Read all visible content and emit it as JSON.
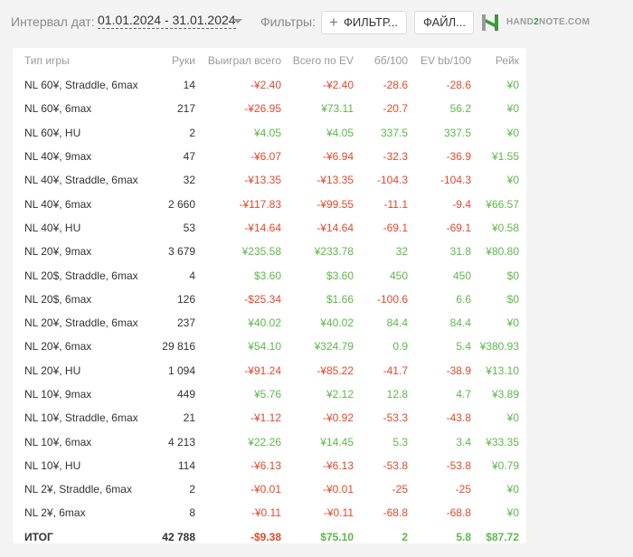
{
  "toolbar": {
    "date_label": "Интервал дат:",
    "date_range": "01.01.2024 - 31.01.2024",
    "filters_label": "Фильтры:",
    "filter_button": "ФИЛЬТР...",
    "file_button": "ФАЙЛ...",
    "logo_text_a": "HAND",
    "logo_text_b": "2",
    "logo_text_c": "NOTE.COM",
    "colors": {
      "logo_green": "#3c9a3c",
      "negative": "#e0492c",
      "positive": "#5cb84a"
    }
  },
  "table": {
    "columns": [
      "Тип игры",
      "Руки",
      "Выиграл всего",
      "Всего по EV",
      "бб/100",
      "EV bb/100",
      "Рейк"
    ],
    "rows": [
      [
        "NL 60¥, Straddle, 6max",
        "14",
        "-¥2.40",
        "-¥2.40",
        "-28.6",
        "-28.6",
        "¥0"
      ],
      [
        "NL 60¥, 6max",
        "217",
        "-¥26.95",
        "¥73.11",
        "-20.7",
        "56.2",
        "¥0"
      ],
      [
        "NL 60¥, HU",
        "2",
        "¥4.05",
        "¥4.05",
        "337.5",
        "337.5",
        "¥0"
      ],
      [
        "NL 40¥, 9max",
        "47",
        "-¥6.07",
        "-¥6.94",
        "-32.3",
        "-36.9",
        "¥1.55"
      ],
      [
        "NL 40¥, Straddle, 6max",
        "32",
        "-¥13.35",
        "-¥13.35",
        "-104.3",
        "-104.3",
        "¥0"
      ],
      [
        "NL 40¥, 6max",
        "2 660",
        "-¥117.83",
        "-¥99.55",
        "-11.1",
        "-9.4",
        "¥66.57"
      ],
      [
        "NL 40¥, HU",
        "53",
        "-¥14.64",
        "-¥14.64",
        "-69.1",
        "-69.1",
        "¥0.58"
      ],
      [
        "NL 20¥, 9max",
        "3 679",
        "¥235.58",
        "¥233.78",
        "32",
        "31.8",
        "¥80.80"
      ],
      [
        "NL 20$, Straddle, 6max",
        "4",
        "$3.60",
        "$3.60",
        "450",
        "450",
        "$0"
      ],
      [
        "NL 20$, 6max",
        "126",
        "-$25.34",
        "$1.66",
        "-100.6",
        "6.6",
        "$0"
      ],
      [
        "NL 20¥, Straddle, 6max",
        "237",
        "¥40.02",
        "¥40.02",
        "84.4",
        "84.4",
        "¥0"
      ],
      [
        "NL 20¥, 6max",
        "29 816",
        "¥54.10",
        "¥324.79",
        "0.9",
        "5.4",
        "¥380.93"
      ],
      [
        "NL 20¥, HU",
        "1 094",
        "-¥91.24",
        "-¥85.22",
        "-41.7",
        "-38.9",
        "¥13.10"
      ],
      [
        "NL 10¥, 9max",
        "449",
        "¥5.76",
        "¥2.12",
        "12.8",
        "4.7",
        "¥3.89"
      ],
      [
        "NL 10¥, Straddle, 6max",
        "21",
        "-¥1.12",
        "-¥0.92",
        "-53.3",
        "-43.8",
        "¥0"
      ],
      [
        "NL 10¥, 6max",
        "4 213",
        "¥22.26",
        "¥14.45",
        "5.3",
        "3.4",
        "¥33.35"
      ],
      [
        "NL 10¥, HU",
        "114",
        "-¥6.13",
        "-¥6.13",
        "-53.8",
        "-53.8",
        "¥0.79"
      ],
      [
        "NL 2¥, Straddle, 6max",
        "2",
        "-¥0.01",
        "-¥0.01",
        "-25",
        "-25",
        "¥0"
      ],
      [
        "NL 2¥, 6max",
        "8",
        "-¥0.11",
        "-¥0.11",
        "-68.8",
        "-68.8",
        "¥0"
      ]
    ],
    "total": [
      "ИТОГ",
      "42 788",
      "-$9.38",
      "$75.10",
      "2",
      "5.8",
      "$87.72"
    ]
  }
}
